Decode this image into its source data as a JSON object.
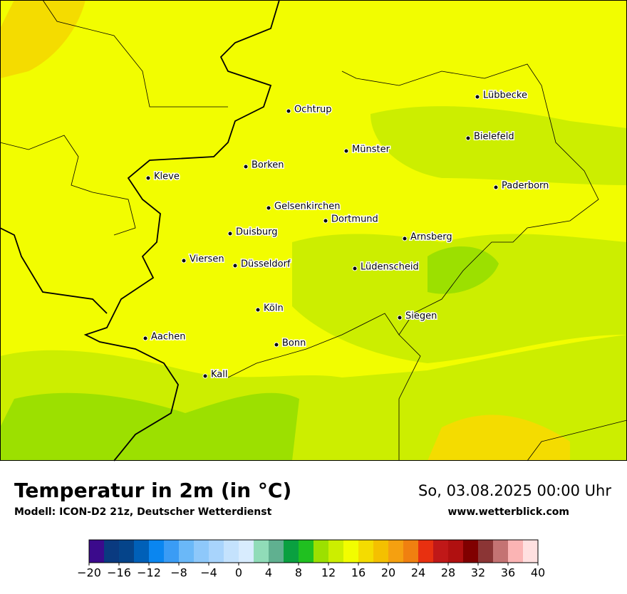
{
  "header": {
    "title": "Temperatur in 2m (in °C)",
    "subtitle": "Modell: ICON-D2 21z, Deutscher Wetterdienst",
    "date": "So, 03.08.2025 00:00 Uhr",
    "site": "www.wetterblick.com"
  },
  "map": {
    "cities": [
      "Lübbecke",
      "Ochtrup",
      "Bielefeld",
      "Münster",
      "Borken",
      "Kleve",
      "Paderborn",
      "Gelsenkirchen",
      "Dortmund",
      "Duisburg",
      "Arnsberg",
      "Viersen",
      "Düsseldorf",
      "Lüdenscheid",
      "Köln",
      "Siegen",
      "Aachen",
      "Bonn",
      "Kall"
    ]
  },
  "legend": {
    "range": [
      -20,
      40
    ],
    "colors": [
      "#3b0a8c",
      "#0a3a80",
      "#05448a",
      "#0060b8",
      "#0a86f0",
      "#3a9cf5",
      "#6ab8f8",
      "#8ec8fa",
      "#a8d4fc",
      "#c4e2fd",
      "#d8ecfe",
      "#90dcb8",
      "#60b090",
      "#0aa040",
      "#20c020",
      "#9ce000",
      "#ccee00",
      "#f2fd00",
      "#f4dc00",
      "#f4c000",
      "#f5a010",
      "#f08010",
      "#e83010",
      "#c01818",
      "#b01010",
      "#800000",
      "#8b3535",
      "#c47373",
      "#fbb4b4",
      "#ffe0e0"
    ],
    "ticks": [
      {
        "value": -20,
        "label": "−20"
      },
      {
        "value": -16,
        "label": "−16"
      },
      {
        "value": -12,
        "label": "−12"
      },
      {
        "value": -8,
        "label": "−8"
      },
      {
        "value": -4,
        "label": "−4"
      },
      0,
      4,
      8,
      12,
      16,
      20,
      24,
      28,
      32,
      36,
      40
    ]
  }
}
